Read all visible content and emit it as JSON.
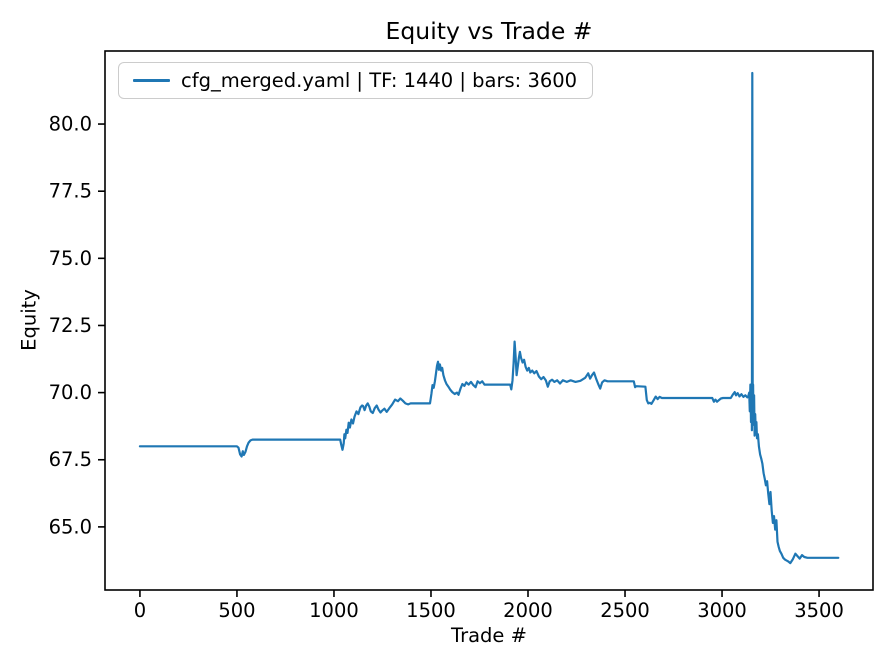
{
  "figure": {
    "title": "Equity vs Trade #",
    "background_color": "#ffffff"
  },
  "chart_data": {
    "type": "line",
    "title": "Equity vs Trade #",
    "xlabel": "Trade #",
    "ylabel": "Equity",
    "xlim": [
      -180,
      3778
    ],
    "ylim": [
      62.65,
      82.72
    ],
    "x_ticks": [
      0,
      500,
      1000,
      1500,
      2000,
      2500,
      3000,
      3500
    ],
    "y_ticks": [
      65.0,
      67.5,
      70.0,
      72.5,
      75.0,
      77.5,
      80.0
    ],
    "y_tick_labels": [
      "65.0",
      "67.5",
      "70.0",
      "72.5",
      "75.0",
      "77.5",
      "80.0"
    ],
    "grid": false,
    "line_color": "#1f77b4",
    "axis_color": "#000000",
    "legend": {
      "position": "upper-left",
      "entries": [
        {
          "label": "cfg_merged.yaml | TF: 1440 | bars: 3600",
          "color": "#1f77b4"
        }
      ]
    },
    "series": [
      {
        "name": "cfg_merged.yaml | TF: 1440 | bars: 3600",
        "color": "#1f77b4",
        "points": [
          [
            0,
            68.0
          ],
          [
            500,
            68.0
          ],
          [
            508,
            67.95
          ],
          [
            516,
            67.7
          ],
          [
            524,
            67.62
          ],
          [
            530,
            67.82
          ],
          [
            536,
            67.68
          ],
          [
            544,
            67.8
          ],
          [
            552,
            68.0
          ],
          [
            560,
            68.14
          ],
          [
            570,
            68.22
          ],
          [
            580,
            68.25
          ],
          [
            1026,
            68.25
          ],
          [
            1032,
            68.25
          ],
          [
            1038,
            68.05
          ],
          [
            1044,
            67.87
          ],
          [
            1050,
            68.1
          ],
          [
            1054,
            68.45
          ],
          [
            1058,
            68.3
          ],
          [
            1064,
            68.62
          ],
          [
            1070,
            68.5
          ],
          [
            1076,
            68.88
          ],
          [
            1082,
            68.7
          ],
          [
            1090,
            69.0
          ],
          [
            1098,
            68.85
          ],
          [
            1106,
            69.1
          ],
          [
            1116,
            69.3
          ],
          [
            1126,
            69.2
          ],
          [
            1136,
            69.45
          ],
          [
            1145,
            69.52
          ],
          [
            1150,
            69.5
          ],
          [
            1158,
            69.35
          ],
          [
            1166,
            69.52
          ],
          [
            1174,
            69.6
          ],
          [
            1182,
            69.48
          ],
          [
            1190,
            69.3
          ],
          [
            1200,
            69.24
          ],
          [
            1210,
            69.42
          ],
          [
            1220,
            69.52
          ],
          [
            1230,
            69.36
          ],
          [
            1240,
            69.26
          ],
          [
            1250,
            69.34
          ],
          [
            1260,
            69.4
          ],
          [
            1272,
            69.28
          ],
          [
            1285,
            69.42
          ],
          [
            1300,
            69.56
          ],
          [
            1315,
            69.74
          ],
          [
            1330,
            69.68
          ],
          [
            1342,
            69.78
          ],
          [
            1355,
            69.7
          ],
          [
            1368,
            69.6
          ],
          [
            1382,
            69.56
          ],
          [
            1395,
            69.6
          ],
          [
            1495,
            69.6
          ],
          [
            1502,
            69.95
          ],
          [
            1508,
            70.28
          ],
          [
            1514,
            70.18
          ],
          [
            1520,
            70.42
          ],
          [
            1526,
            70.72
          ],
          [
            1531,
            71.0
          ],
          [
            1536,
            71.15
          ],
          [
            1541,
            70.85
          ],
          [
            1546,
            71.05
          ],
          [
            1552,
            70.82
          ],
          [
            1558,
            70.92
          ],
          [
            1564,
            70.65
          ],
          [
            1572,
            70.45
          ],
          [
            1580,
            70.32
          ],
          [
            1590,
            70.22
          ],
          [
            1600,
            70.1
          ],
          [
            1610,
            70.02
          ],
          [
            1622,
            69.95
          ],
          [
            1634,
            70.0
          ],
          [
            1642,
            69.92
          ],
          [
            1652,
            70.15
          ],
          [
            1662,
            70.32
          ],
          [
            1672,
            70.25
          ],
          [
            1682,
            70.38
          ],
          [
            1694,
            70.3
          ],
          [
            1706,
            70.4
          ],
          [
            1718,
            70.28
          ],
          [
            1730,
            70.2
          ],
          [
            1740,
            70.42
          ],
          [
            1752,
            70.35
          ],
          [
            1764,
            70.42
          ],
          [
            1776,
            70.3
          ],
          [
            1908,
            70.3
          ],
          [
            1914,
            70.12
          ],
          [
            1920,
            70.45
          ],
          [
            1926,
            71.1
          ],
          [
            1931,
            71.9
          ],
          [
            1936,
            71.35
          ],
          [
            1941,
            70.65
          ],
          [
            1947,
            70.95
          ],
          [
            1953,
            71.3
          ],
          [
            1958,
            71.52
          ],
          [
            1964,
            71.3
          ],
          [
            1972,
            71.12
          ],
          [
            1980,
            71.22
          ],
          [
            1988,
            70.95
          ],
          [
            1996,
            70.82
          ],
          [
            2004,
            70.92
          ],
          [
            2012,
            70.75
          ],
          [
            2022,
            70.82
          ],
          [
            2032,
            70.72
          ],
          [
            2044,
            70.8
          ],
          [
            2056,
            70.6
          ],
          [
            2068,
            70.5
          ],
          [
            2080,
            70.58
          ],
          [
            2092,
            70.45
          ],
          [
            2102,
            70.22
          ],
          [
            2112,
            70.42
          ],
          [
            2124,
            70.48
          ],
          [
            2136,
            70.4
          ],
          [
            2150,
            70.46
          ],
          [
            2165,
            70.34
          ],
          [
            2180,
            70.46
          ],
          [
            2200,
            70.4
          ],
          [
            2220,
            70.46
          ],
          [
            2245,
            70.4
          ],
          [
            2270,
            70.44
          ],
          [
            2295,
            70.55
          ],
          [
            2310,
            70.72
          ],
          [
            2320,
            70.52
          ],
          [
            2330,
            70.65
          ],
          [
            2340,
            70.75
          ],
          [
            2352,
            70.5
          ],
          [
            2362,
            70.32
          ],
          [
            2372,
            70.15
          ],
          [
            2382,
            70.38
          ],
          [
            2394,
            70.46
          ],
          [
            2410,
            70.42
          ],
          [
            2545,
            70.42
          ],
          [
            2552,
            70.2
          ],
          [
            2558,
            70.24
          ],
          [
            2605,
            70.22
          ],
          [
            2612,
            69.72
          ],
          [
            2620,
            69.6
          ],
          [
            2628,
            69.62
          ],
          [
            2636,
            69.58
          ],
          [
            2648,
            69.72
          ],
          [
            2658,
            69.85
          ],
          [
            2668,
            69.76
          ],
          [
            2678,
            69.84
          ],
          [
            2690,
            69.8
          ],
          [
            2950,
            69.8
          ],
          [
            2958,
            69.66
          ],
          [
            2966,
            69.74
          ],
          [
            2974,
            69.66
          ],
          [
            2984,
            69.72
          ],
          [
            2994,
            69.78
          ],
          [
            3005,
            69.8
          ],
          [
            3045,
            69.8
          ],
          [
            3055,
            69.92
          ],
          [
            3065,
            70.02
          ],
          [
            3072,
            69.9
          ],
          [
            3080,
            69.98
          ],
          [
            3090,
            69.86
          ],
          [
            3100,
            69.94
          ],
          [
            3110,
            69.84
          ],
          [
            3120,
            69.9
          ],
          [
            3130,
            69.82
          ],
          [
            3135,
            69.85
          ],
          [
            3140,
            70.0
          ],
          [
            3143,
            69.3
          ],
          [
            3146,
            70.3
          ],
          [
            3149,
            68.9
          ],
          [
            3152,
            70.1
          ],
          [
            3154,
            68.6
          ],
          [
            3156,
            81.9
          ],
          [
            3158,
            69.6
          ],
          [
            3160,
            70.3
          ],
          [
            3162,
            68.8
          ],
          [
            3165,
            69.9
          ],
          [
            3168,
            68.4
          ],
          [
            3171,
            69.2
          ],
          [
            3174,
            68.5
          ],
          [
            3177,
            68.9
          ],
          [
            3180,
            68.3
          ],
          [
            3185,
            68.45
          ],
          [
            3190,
            68.0
          ],
          [
            3196,
            67.7
          ],
          [
            3202,
            67.55
          ],
          [
            3208,
            67.35
          ],
          [
            3214,
            67.0
          ],
          [
            3220,
            66.8
          ],
          [
            3226,
            66.55
          ],
          [
            3232,
            66.7
          ],
          [
            3238,
            66.25
          ],
          [
            3244,
            65.85
          ],
          [
            3250,
            66.3
          ],
          [
            3256,
            65.6
          ],
          [
            3262,
            65.15
          ],
          [
            3268,
            65.4
          ],
          [
            3274,
            64.9
          ],
          [
            3280,
            65.25
          ],
          [
            3286,
            64.45
          ],
          [
            3292,
            64.25
          ],
          [
            3298,
            64.1
          ],
          [
            3306,
            64.0
          ],
          [
            3315,
            63.85
          ],
          [
            3325,
            63.78
          ],
          [
            3340,
            63.72
          ],
          [
            3352,
            63.65
          ],
          [
            3365,
            63.8
          ],
          [
            3378,
            64.0
          ],
          [
            3390,
            63.9
          ],
          [
            3400,
            63.82
          ],
          [
            3412,
            63.95
          ],
          [
            3424,
            63.88
          ],
          [
            3440,
            63.85
          ],
          [
            3460,
            63.85
          ],
          [
            3520,
            63.85
          ],
          [
            3599,
            63.85
          ]
        ]
      }
    ]
  }
}
